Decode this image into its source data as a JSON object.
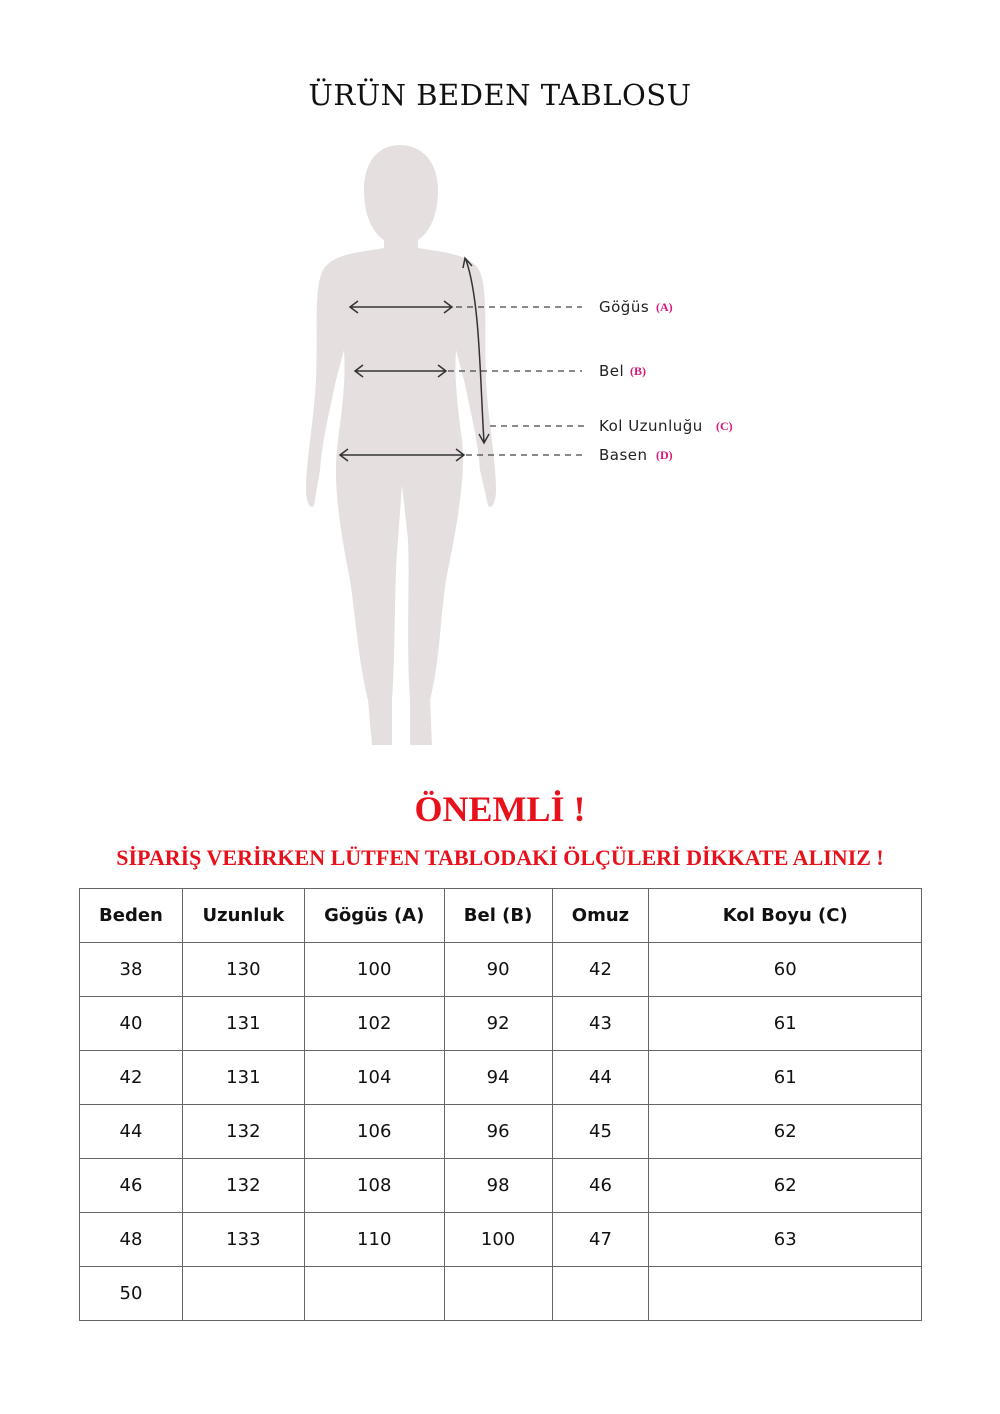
{
  "title": "ÜRÜN BEDEN TABLOSU",
  "figure": {
    "labels": [
      {
        "text": "Göğüs",
        "tag": "(A)"
      },
      {
        "text": "Bel",
        "tag": "(B)"
      },
      {
        "text": "Kol Uzunluğu",
        "tag": "(C)"
      },
      {
        "text": "Basen",
        "tag": "(D)"
      }
    ],
    "silhouette_color": "#e6dfe0",
    "tag_color": "#d6167a"
  },
  "notice": {
    "heading": "ÖNEMLİ !",
    "message": "SİPARİŞ VERİRKEN LÜTFEN TABLODAKİ ÖLÇÜLERİ DİKKATE ALINIZ !",
    "color": "#e8101a"
  },
  "table": {
    "headers": [
      "Beden",
      "Uzunluk",
      "Gögüs (A)",
      "Bel (B)",
      "Omuz",
      "Kol Boyu (C)"
    ],
    "rows": [
      [
        "38",
        "130",
        "100",
        "90",
        "42",
        "60"
      ],
      [
        "40",
        "131",
        "102",
        "92",
        "43",
        "61"
      ],
      [
        "42",
        "131",
        "104",
        "94",
        "44",
        "61"
      ],
      [
        "44",
        "132",
        "106",
        "96",
        "45",
        "62"
      ],
      [
        "46",
        "132",
        "108",
        "98",
        "46",
        "62"
      ],
      [
        "48",
        "133",
        "110",
        "100",
        "47",
        "63"
      ],
      [
        "50",
        "",
        "",
        "",
        "",
        ""
      ]
    ]
  }
}
